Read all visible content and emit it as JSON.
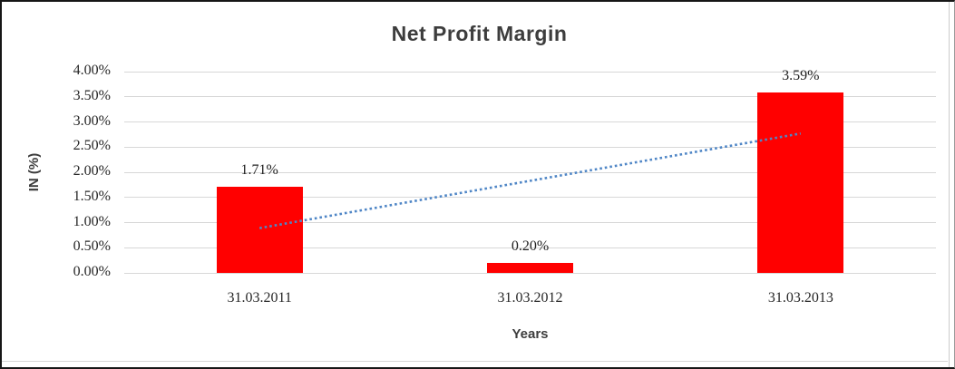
{
  "chart_data": {
    "type": "bar",
    "title": "Net Profit Margin",
    "categories": [
      "31.03.2011",
      "31.03.2012",
      "31.03.2013"
    ],
    "values": [
      1.71,
      0.2,
      3.59
    ],
    "data_labels": [
      "1.71%",
      "0.20%",
      "3.59%"
    ],
    "xlabel": "Years",
    "ylabel": "IN (%)",
    "ylim": [
      0,
      4
    ],
    "ytick_step": 0.5,
    "yticks": [
      {
        "value": 4.0,
        "label": "4.00%"
      },
      {
        "value": 3.5,
        "label": "3.50%"
      },
      {
        "value": 3.0,
        "label": "3.00%"
      },
      {
        "value": 2.5,
        "label": "2.50%"
      },
      {
        "value": 2.0,
        "label": "2.00%"
      },
      {
        "value": 1.5,
        "label": "1.50%"
      },
      {
        "value": 1.0,
        "label": "1.00%"
      },
      {
        "value": 0.5,
        "label": "0.50%"
      },
      {
        "value": 0.0,
        "label": "0.00%"
      }
    ],
    "grid": true,
    "legend": "none",
    "bar_color": "#FF0000",
    "gridline_color": "#D7D7D7",
    "trendline": {
      "type": "linear",
      "line_style": "dotted",
      "color": "#4F86C6",
      "start_value": 0.89,
      "end_value": 2.77
    }
  }
}
